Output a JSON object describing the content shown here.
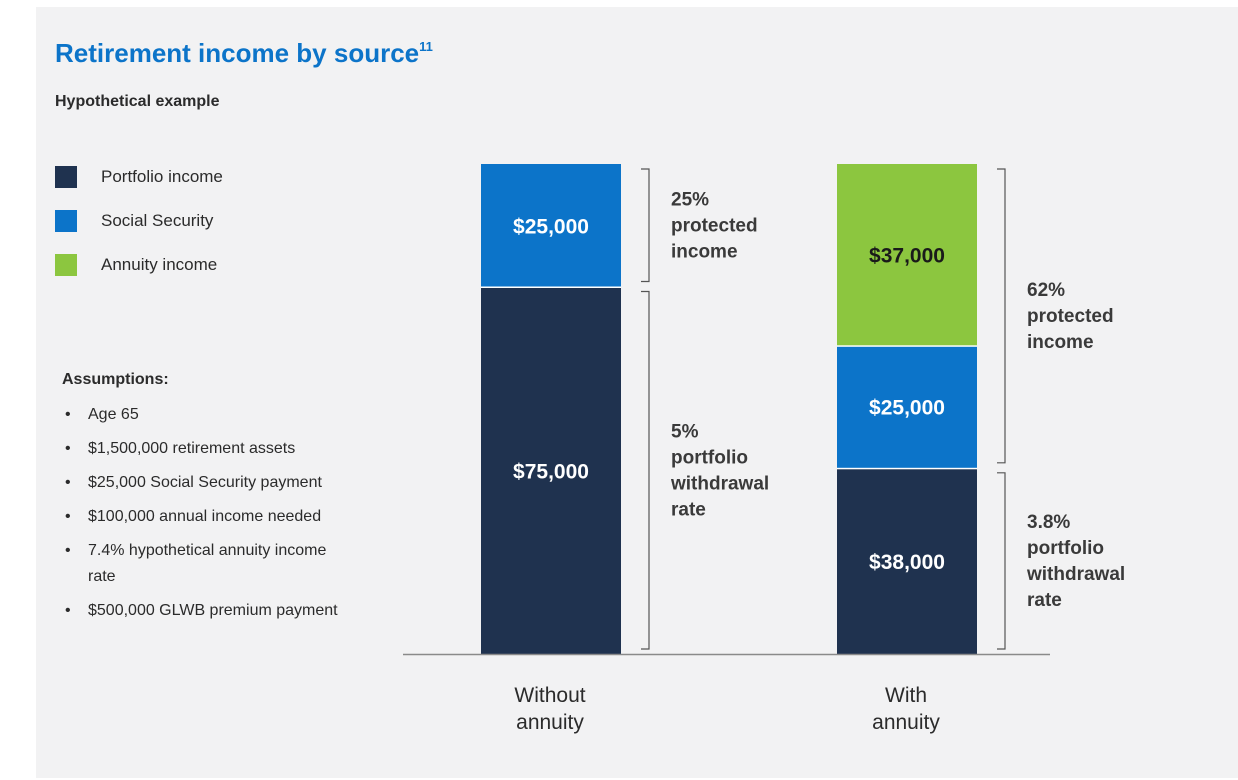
{
  "title": "Retirement income by source",
  "title_footnote": "11",
  "subtitle": "Hypothetical example",
  "legend": [
    {
      "label": "Portfolio income",
      "color": "#1f324f"
    },
    {
      "label": "Social Security",
      "color": "#0c74c9"
    },
    {
      "label": "Annuity income",
      "color": "#8cc63f"
    }
  ],
  "assumptions": {
    "title": "Assumptions:",
    "items": [
      "Age 65",
      "$1,500,000 retirement assets",
      "$25,000 Social Security payment",
      "$100,000 annual income needed",
      "7.4% hypothetical annuity income rate",
      "$500,000 GLWB premium payment"
    ]
  },
  "chart_data": {
    "type": "bar",
    "stacked": true,
    "ylim": [
      0,
      100000
    ],
    "categories": [
      "Without annuity",
      "With annuity"
    ],
    "series": [
      {
        "name": "Portfolio income",
        "color": "#1f324f",
        "values": [
          75000,
          38000
        ],
        "labels": [
          "$75,000",
          "$38,000"
        ],
        "label_color": "#ffffff"
      },
      {
        "name": "Social Security",
        "color": "#0c74c9",
        "values": [
          25000,
          25000
        ],
        "labels": [
          "$25,000",
          "$25,000"
        ],
        "label_color": "#ffffff"
      },
      {
        "name": "Annuity income",
        "color": "#8cc63f",
        "values": [
          0,
          37000
        ],
        "labels": [
          "",
          "$37,000"
        ],
        "label_color": "#1a1a1a"
      }
    ],
    "annotations": [
      {
        "category": 0,
        "from": 75000,
        "to": 100000,
        "lines": [
          "25%",
          "protected",
          "income"
        ]
      },
      {
        "category": 0,
        "from": 0,
        "to": 75000,
        "lines": [
          "5%",
          "portfolio",
          "withdrawal",
          "rate"
        ]
      },
      {
        "category": 1,
        "from": 38000,
        "to": 100000,
        "lines": [
          "62%",
          "protected",
          "income"
        ]
      },
      {
        "category": 1,
        "from": 0,
        "to": 38000,
        "lines": [
          "3.8%",
          "portfolio",
          "withdrawal",
          "rate"
        ]
      }
    ],
    "category_label_lines": [
      [
        "Without",
        "annuity"
      ],
      [
        "With",
        "annuity"
      ]
    ]
  }
}
